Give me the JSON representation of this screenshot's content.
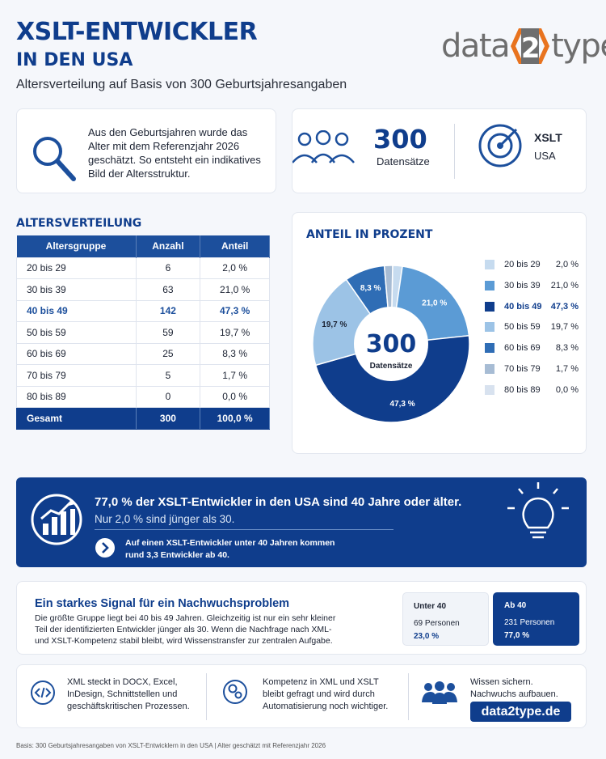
{
  "header": {
    "title_line1": "XSLT-ENTWICKLER",
    "title_line2": "IN DEN USA",
    "subtitle": "Altersverteilung auf Basis von 300 Geburtsjahresangaben",
    "logo": {
      "left": "data",
      "middle": "2",
      "right": "type",
      "icon": "data2type-logo"
    }
  },
  "info": {
    "text": "Aus den Geburtsjahren wurde das Alter mit dem Referenzjahr 2026 geschätzt. So entsteht ein indikatives Bild der Altersstruktur.",
    "icon": "magnifier-icon"
  },
  "stats": {
    "count": "300",
    "count_label": "Datensätze",
    "people_icon": "people-group-icon",
    "target_icon": "target-icon",
    "tech": "XSLT",
    "country": "USA"
  },
  "table": {
    "title": "ALTERSVERTEILUNG",
    "headers": [
      "Altersgruppe",
      "Anzahl",
      "Anteil"
    ],
    "rows": [
      [
        "20 bis 29",
        "6",
        "2,0 %"
      ],
      [
        "30 bis 39",
        "63",
        "21,0 %"
      ],
      [
        "40 bis 49",
        "142",
        "47,3 %"
      ],
      [
        "50 bis 59",
        "59",
        "19,7 %"
      ],
      [
        "60 bis 69",
        "25",
        "8,3 %"
      ],
      [
        "70 bis 79",
        "5",
        "1,7 %"
      ],
      [
        "80 bis 89",
        "0",
        "0,0 %"
      ]
    ],
    "highlight_row": 2,
    "total": [
      "Gesamt",
      "300",
      "100,0 %"
    ]
  },
  "chart_data": {
    "type": "pie",
    "title": "ANTEIL IN PROZENT",
    "center_value": "300",
    "center_label": "Datensätze",
    "categories": [
      "20 bis 29",
      "30 bis 39",
      "40 bis 49",
      "50 bis 59",
      "60 bis 69",
      "70 bis 79",
      "80 bis 89"
    ],
    "values": [
      2.0,
      21.0,
      47.3,
      19.7,
      8.3,
      1.7,
      0.0
    ],
    "value_labels": [
      "2,0 %",
      "21,0 %",
      "47,3 %",
      "19,7 %",
      "8,3 %",
      "1,7 %",
      "0,0 %"
    ],
    "slice_labels": [
      "",
      "21,0 %",
      "47,3 %",
      "19,7 %",
      "8,3 %",
      "",
      ""
    ],
    "colors": [
      "#c6dbef",
      "#5b9bd5",
      "#0f3d8c",
      "#9cc3e6",
      "#2f6db5",
      "#a7bcd4",
      "#d8e2ef"
    ],
    "legend_position": "right",
    "donut": true
  },
  "banner": {
    "headline": "77,0 % der XSLT-Entwickler in den USA sind 40 Jahre oder älter.",
    "subline": "Nur 2,0 % sind jünger als 30.",
    "note_line1": "Auf einen XSLT-Entwickler unter 40 Jahren kommen",
    "note_line2": "rund 3,3 Entwickler ab 40.",
    "chart_icon": "growth-chart-icon",
    "bulb_icon": "lightbulb-icon",
    "arrow_icon": "chevron-right-icon"
  },
  "signal": {
    "title": "Ein starkes Signal für ein Nachwuchsproblem",
    "text_lines": [
      "Die größte Gruppe liegt bei 40 bis 49 Jahren. Gleichzeitig ist nur ein sehr kleiner",
      "Teil der identifizierten Entwickler jünger als 30. Wenn die Nachfrage nach XML-",
      "und XSLT-Kompetenz stabil bleibt, wird Wissenstransfer zur zentralen Aufgabe."
    ],
    "boxes": [
      {
        "title": "Unter 40",
        "count": "69 Personen",
        "pct": "23,0 %"
      },
      {
        "title": "Ab 40",
        "count": "231 Personen",
        "pct": "77,0 %"
      }
    ]
  },
  "features": [
    {
      "icon": "code-icon",
      "lines": [
        "XML steckt in DOCX, Excel,",
        "InDesign, Schnittstellen und",
        "geschäftskritischen Prozessen."
      ]
    },
    {
      "icon": "gears-icon",
      "lines": [
        "Kompetenz in XML und XSLT",
        "bleibt gefragt und wird durch",
        "Automatisierung noch wichtiger."
      ]
    },
    {
      "icon": "team-icon",
      "lines": [
        "Wissen sichern.",
        "Nachwuchs aufbauen."
      ],
      "link": "data2type.de"
    }
  ],
  "footnote": "Basis: 300 Geburtsjahresangaben von XSLT-Entwicklern in den USA | Alter geschätzt mit Referenzjahr 2026"
}
